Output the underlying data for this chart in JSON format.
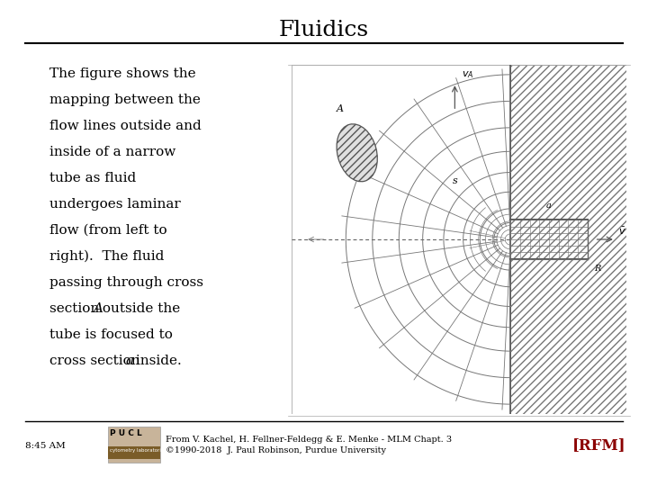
{
  "title": "Fluidics",
  "title_fontsize": 18,
  "bg_color": "#ffffff",
  "body_text_lines": [
    "The figure shows the",
    "mapping between the",
    "flow lines outside and",
    "inside of a narrow",
    "tube as fluid",
    "undergoes laminar",
    "flow (from left to",
    "right).  The fluid",
    "passing through cross",
    "section   outside the",
    "tube is focused to",
    "cross section   inside."
  ],
  "footer_left": "8:45 AM",
  "footer_citation_line1": "From V. Kachel, H. Fellner-Feldegg & E. Menke - MLM Chapt. 3",
  "footer_citation_line2": "©1990-2018  J. Paul Robinson, Purdue University",
  "footer_rfm": "[RFM]",
  "line_color": "#777777",
  "dark_color": "#555555"
}
